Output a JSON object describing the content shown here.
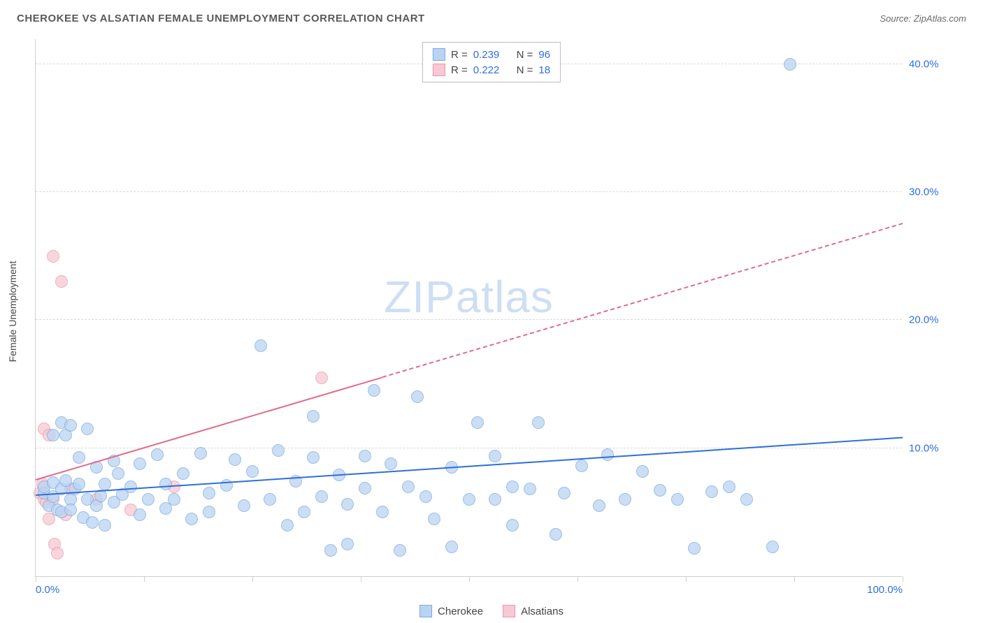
{
  "header": {
    "title": "CHEROKEE VS ALSATIAN FEMALE UNEMPLOYMENT CORRELATION CHART",
    "source_prefix": "Source: ",
    "source": "ZipAtlas.com"
  },
  "watermark": {
    "zip": "ZIP",
    "atlas": "atlas"
  },
  "chart": {
    "type": "scatter",
    "ylabel": "Female Unemployment",
    "xlim": [
      0,
      100
    ],
    "ylim": [
      0,
      42
    ],
    "xticks": [
      0,
      12.5,
      25,
      37.5,
      50,
      62.5,
      75,
      87.5,
      100
    ],
    "xtick_labels": {
      "0": "0.0%",
      "100": "100.0%"
    },
    "yticks": [
      10,
      20,
      30,
      40
    ],
    "ytick_labels": [
      "10.0%",
      "20.0%",
      "30.0%",
      "40.0%"
    ],
    "background_color": "#ffffff",
    "grid_color": "#d8d8d8",
    "axis_color": "#cfcfcf",
    "tick_label_color": "#2e6fd9",
    "marker_radius": 9,
    "series": {
      "cherokee": {
        "label": "Cherokee",
        "fill": "#b9d4f3",
        "stroke": "#7fa9dc",
        "line_color": "#2e6fd9",
        "R": "0.239",
        "N": "96",
        "trend": {
          "x1": 0,
          "y1": 6.3,
          "x2": 100,
          "y2": 10.8,
          "dashed": false
        },
        "points": [
          [
            1,
            6.5
          ],
          [
            1,
            7.0
          ],
          [
            1.5,
            5.5
          ],
          [
            2,
            6.2
          ],
          [
            2,
            7.3
          ],
          [
            2.5,
            5.2
          ],
          [
            3,
            6.8
          ],
          [
            3,
            5.0
          ],
          [
            3,
            12.0
          ],
          [
            3.5,
            7.5
          ],
          [
            4,
            6.0
          ],
          [
            4,
            5.2
          ],
          [
            4.5,
            6.8
          ],
          [
            5,
            7.2
          ],
          [
            5,
            9.3
          ],
          [
            5.5,
            4.6
          ],
          [
            6,
            6.0
          ],
          [
            6,
            11.5
          ],
          [
            7,
            5.5
          ],
          [
            7,
            8.5
          ],
          [
            8,
            7.2
          ],
          [
            8,
            4.0
          ],
          [
            9,
            9.0
          ],
          [
            9,
            5.8
          ],
          [
            10,
            6.4
          ],
          [
            11,
            7.0
          ],
          [
            12,
            8.8
          ],
          [
            12,
            4.8
          ],
          [
            13,
            6.0
          ],
          [
            14,
            9.5
          ],
          [
            15,
            5.3
          ],
          [
            15,
            7.2
          ],
          [
            16,
            6.0
          ],
          [
            17,
            8.0
          ],
          [
            18,
            4.5
          ],
          [
            19,
            9.6
          ],
          [
            20,
            6.5
          ],
          [
            20,
            5.0
          ],
          [
            22,
            7.1
          ],
          [
            23,
            9.1
          ],
          [
            24,
            5.5
          ],
          [
            25,
            8.2
          ],
          [
            26,
            18.0
          ],
          [
            27,
            6.0
          ],
          [
            28,
            9.8
          ],
          [
            29,
            4.0
          ],
          [
            30,
            7.4
          ],
          [
            31,
            5.0
          ],
          [
            32,
            9.3
          ],
          [
            32,
            12.5
          ],
          [
            33,
            6.2
          ],
          [
            34,
            2.0
          ],
          [
            35,
            7.9
          ],
          [
            36,
            5.6
          ],
          [
            36,
            2.5
          ],
          [
            38,
            9.4
          ],
          [
            38,
            6.9
          ],
          [
            39,
            14.5
          ],
          [
            40,
            5.0
          ],
          [
            41,
            8.8
          ],
          [
            42,
            2.0
          ],
          [
            43,
            7.0
          ],
          [
            44,
            14.0
          ],
          [
            45,
            6.2
          ],
          [
            46,
            4.5
          ],
          [
            48,
            8.5
          ],
          [
            48,
            2.3
          ],
          [
            50,
            6.0
          ],
          [
            51,
            12.0
          ],
          [
            53,
            9.4
          ],
          [
            53,
            6.0
          ],
          [
            55,
            7.0
          ],
          [
            55,
            4.0
          ],
          [
            57,
            6.8
          ],
          [
            58,
            12.0
          ],
          [
            60,
            3.3
          ],
          [
            61,
            6.5
          ],
          [
            63,
            8.6
          ],
          [
            65,
            5.5
          ],
          [
            66,
            9.5
          ],
          [
            68,
            6.0
          ],
          [
            70,
            8.2
          ],
          [
            72,
            6.7
          ],
          [
            74,
            6.0
          ],
          [
            76,
            2.2
          ],
          [
            78,
            6.6
          ],
          [
            80,
            7.0
          ],
          [
            82,
            6.0
          ],
          [
            85,
            2.3
          ],
          [
            87,
            40.0
          ],
          [
            2,
            11.0
          ],
          [
            3.5,
            11.0
          ],
          [
            4,
            11.8
          ],
          [
            6.5,
            4.2
          ],
          [
            7.5,
            6.3
          ],
          [
            9.5,
            8.0
          ]
        ]
      },
      "alsatians": {
        "label": "Alsatians",
        "fill": "#f7c9d4",
        "stroke": "#e996ad",
        "line_color": "#e06b8a",
        "R": "0.222",
        "N": "18",
        "trend_solid": {
          "x1": 0,
          "y1": 7.5,
          "x2": 40,
          "y2": 15.5
        },
        "trend_dashed": {
          "x1": 40,
          "y1": 15.5,
          "x2": 100,
          "y2": 27.5
        },
        "points": [
          [
            0.5,
            6.5
          ],
          [
            0.8,
            7.2
          ],
          [
            1,
            6.0
          ],
          [
            1,
            11.5
          ],
          [
            1.2,
            5.8
          ],
          [
            1.5,
            11.0
          ],
          [
            1.5,
            4.5
          ],
          [
            2,
            25.0
          ],
          [
            2,
            6.0
          ],
          [
            3,
            23.0
          ],
          [
            2.2,
            2.5
          ],
          [
            2.5,
            1.8
          ],
          [
            3.5,
            4.8
          ],
          [
            4,
            6.8
          ],
          [
            7,
            6.0
          ],
          [
            11,
            5.2
          ],
          [
            16,
            7.0
          ],
          [
            33,
            15.5
          ]
        ]
      }
    }
  },
  "legend_top": {
    "r_label": "R =",
    "n_label": "N ="
  },
  "legend_bottom": {
    "items": [
      "cherokee",
      "alsatians"
    ]
  }
}
